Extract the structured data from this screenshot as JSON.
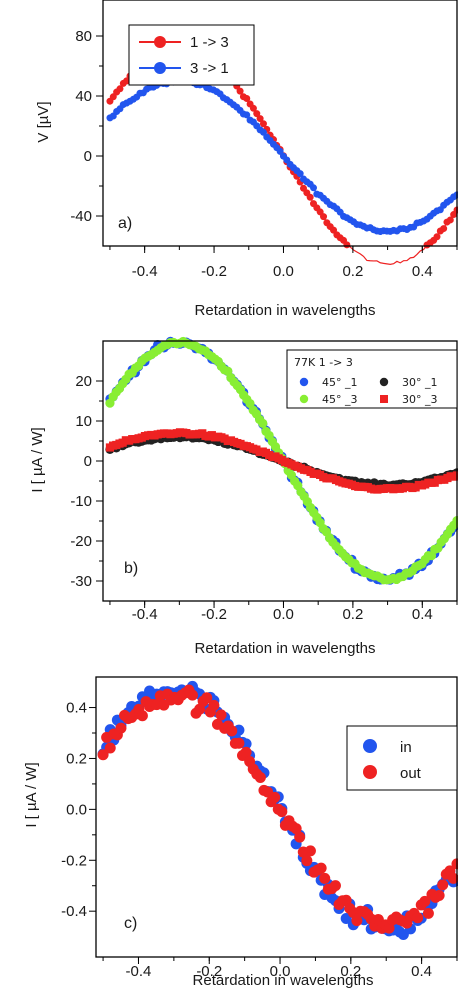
{
  "chart_data": [
    {
      "panel": "a)",
      "type": "scatter",
      "xlabel": "Retardation in wavelengths",
      "ylabel": "V [µV]",
      "xlim": [
        -0.52,
        0.5
      ],
      "ylim": [
        -60,
        104
      ],
      "xticks": [
        "-0.4",
        "-0.2",
        "0.0",
        "0.2",
        "0.4"
      ],
      "xtick_values": [
        -0.4,
        -0.2,
        0.0,
        0.2,
        0.4
      ],
      "yticks": [
        "-40",
        "0",
        "40",
        "80"
      ],
      "ytick_values": [
        -40,
        0,
        40,
        80
      ],
      "legend": {
        "placement": "top-left",
        "entries": [
          "1 -> 3",
          "3 -> 1"
        ]
      },
      "series": [
        {
          "name": "1 -> 3",
          "color": "#ee2222",
          "marker": "circle-line",
          "curve": {
            "a": -72,
            "b": 28,
            "phase": 0.3,
            "noise": 1.0
          }
        },
        {
          "name": "3 -> 1",
          "color": "#2255ee",
          "marker": "circle-line",
          "curve": {
            "a": 50,
            "b": -11,
            "phase": -0.3,
            "noise": 1.0
          }
        }
      ],
      "x_range": [
        -0.5,
        0.5
      ],
      "points_per_series": 105
    },
    {
      "panel": "b)",
      "type": "scatter",
      "xlabel": "Retardation in wavelengths",
      "ylabel": "I [ µA / W]",
      "xlim": [
        -0.52,
        0.5
      ],
      "ylim": [
        -35,
        30
      ],
      "xticks": [
        "-0.4",
        "-0.2",
        "0.0",
        "0.2",
        "0.4"
      ],
      "xtick_values": [
        -0.4,
        -0.2,
        0.0,
        0.2,
        0.4
      ],
      "yticks": [
        "-30",
        "-20",
        "-10",
        "0",
        "10",
        "20"
      ],
      "ytick_values": [
        -30,
        -20,
        -10,
        0,
        10,
        20
      ],
      "legend": {
        "placement": "top-right",
        "title": "77K 1 -> 3",
        "entries": [
          "45° _1",
          "30° _1",
          "45° _3",
          "30° _3"
        ]
      },
      "series": [
        {
          "name": "45° _1",
          "color": "#2255ee",
          "marker": "circle",
          "curve": {
            "a": 29.5,
            "b": -1.5,
            "phase": -0.3,
            "noise": 0.9
          }
        },
        {
          "name": "30° _1",
          "color": "#222222",
          "marker": "circle",
          "curve": {
            "a": 6,
            "b": 0,
            "phase": -0.3,
            "noise": 0.3
          }
        },
        {
          "name": "45° _3",
          "color": "#88ee33",
          "marker": "circle",
          "curve": {
            "a": 29.5,
            "b": -4,
            "phase": -0.3,
            "noise": 0.4
          }
        },
        {
          "name": "30° _3",
          "color": "#ee2222",
          "marker": "square",
          "curve": {
            "a": 7,
            "b": 0,
            "phase": -0.3,
            "noise": 0.3
          }
        }
      ],
      "x_range": [
        -0.5,
        0.5
      ],
      "points_per_series": 110
    },
    {
      "panel": "c)",
      "type": "scatter",
      "xlabel": "Retardation in wavelengths",
      "ylabel": "I [ µA / W]",
      "xlim": [
        -0.52,
        0.5
      ],
      "ylim": [
        -0.58,
        0.52
      ],
      "xticks": [
        "-0.4",
        "-0.2",
        "0.0",
        "0.2",
        "0.4"
      ],
      "xtick_values": [
        -0.4,
        -0.2,
        0.0,
        0.2,
        0.4
      ],
      "yticks": [
        "-0.4",
        "-0.2",
        "0.0",
        "0.2",
        "0.4"
      ],
      "ytick_values": [
        -0.4,
        -0.2,
        0.0,
        0.2,
        0.4
      ],
      "legend": {
        "placement": "top-right",
        "entries": [
          "in",
          "out"
        ]
      },
      "series": [
        {
          "name": "in",
          "color": "#2255ee",
          "marker": "circle",
          "curve": {
            "a": 0.47,
            "b": 0,
            "phase": -0.3,
            "noise": 0.045
          }
        },
        {
          "name": "out",
          "color": "#ee2222",
          "marker": "circle",
          "curve": {
            "a": 0.45,
            "b": 0,
            "phase": -0.3,
            "noise": 0.04
          }
        }
      ],
      "x_range": [
        -0.5,
        0.5
      ],
      "points_per_series": 100
    }
  ]
}
